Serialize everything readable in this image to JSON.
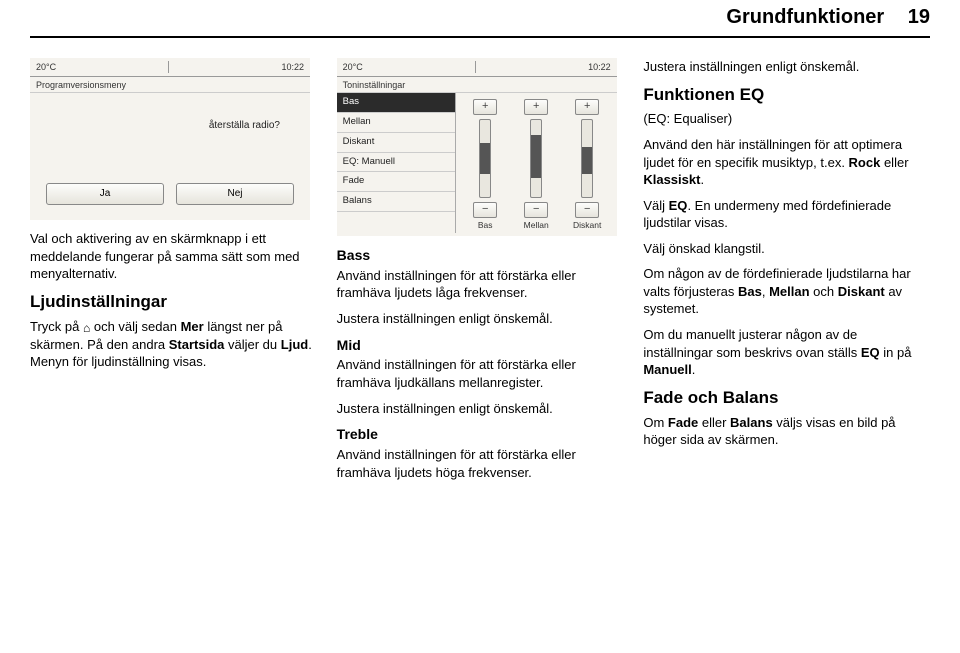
{
  "header": {
    "title": "Grundfunktioner",
    "page": "19"
  },
  "screenshot1": {
    "topbar": {
      "temp": "20°C",
      "time": "10:22"
    },
    "title": "Programversionsmeny",
    "message": "återställa radio?",
    "buttons": {
      "yes": "Ja",
      "no": "Nej"
    }
  },
  "screenshot2": {
    "topbar": {
      "temp": "20°C",
      "time": "10:22"
    },
    "title": "Toninställningar",
    "items": [
      "Bas",
      "Mellan",
      "Diskant",
      "EQ: Manuell",
      "Fade",
      "Balans"
    ],
    "selectedIndex": 0,
    "sliders": [
      {
        "label": "Bas",
        "fillTopPct": 30,
        "fillHeightPct": 40
      },
      {
        "label": "Mellan",
        "fillTopPct": 20,
        "fillHeightPct": 55
      },
      {
        "label": "Diskant",
        "fillTopPct": 35,
        "fillHeightPct": 35
      }
    ],
    "plus": "+",
    "minus": "−"
  },
  "col1": {
    "p1": "Val och aktivering av en skärmknapp i ett meddelande fungerar på samma sätt som med menyalternativ.",
    "h_ljud": "Ljudinställningar",
    "p2a": "Tryck på ",
    "p2b": " och välj sedan ",
    "p2_mer": "Mer",
    "p2c": " längst ner på skärmen. På den andra ",
    "p2_start": "Startsida",
    "p2d": " väljer du ",
    "p2_ljud": "Ljud",
    "p2e": ". Menyn för ljudinställning visas."
  },
  "col2": {
    "h_bass": "Bass",
    "bass_p": "Använd inställningen för att förstärka eller framhäva ljudets låga frekvenser.",
    "adjust": "Justera inställningen enligt önskemål.",
    "h_mid": "Mid",
    "mid_p": "Använd inställningen för att förstärka eller framhäva ljudkällans mellanregister.",
    "h_treble": "Treble",
    "treble_p": "Använd inställningen för att förstärka eller framhäva ljudets höga frekvenser."
  },
  "col3": {
    "adjust": "Justera inställningen enligt önskemål.",
    "h_eq": "Funktionen EQ",
    "eq_sub": "(EQ: Equaliser)",
    "eq_p1a": "Använd den här inställningen för att optimera ljudet för en specifik musiktyp, t.ex. ",
    "eq_rock": "Rock",
    "eq_or": " eller ",
    "eq_klass": "Klassiskt",
    "eq_dot": ".",
    "eq_p2a": "Välj ",
    "eq_p2b": "EQ",
    "eq_p2c": ". En undermeny med fördefinierade ljudstilar visas.",
    "eq_p3": "Välj önskad klangstil.",
    "eq_p4a": "Om någon av de fördefinierade ljudstilarna har valts förjusteras ",
    "eq_bas": "Bas",
    "eq_sep1": ", ",
    "eq_mell": "Mellan",
    "eq_and": " och ",
    "eq_disk": "Diskant",
    "eq_p4b": " av systemet.",
    "eq_p5a": "Om du manuellt justerar någon av de inställningar som beskrivs ovan ställs ",
    "eq_eqw": "EQ",
    "eq_p5b": " in på ",
    "eq_man": "Manuell",
    "eq_p5c": ".",
    "h_fb": "Fade och Balans",
    "fb_a": "Om ",
    "fb_fade": "Fade",
    "fb_or": " eller ",
    "fb_bal": "Balans",
    "fb_b": " väljs visas en bild på höger sida av skärmen."
  }
}
